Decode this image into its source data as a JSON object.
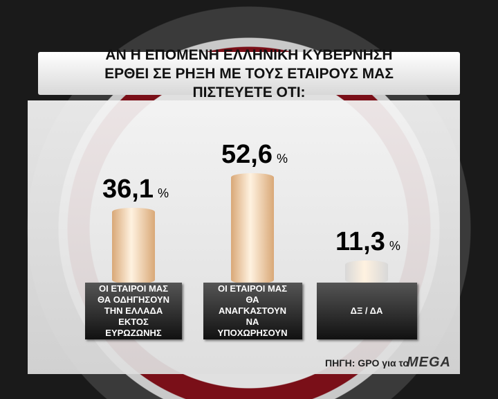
{
  "chart_data": {
    "type": "bar",
    "title": "ΑΝ Η ΕΠΟΜΕΝΗ ΕΛΛΗΝΙΚΗ ΚΥΒΕΡΝΗΣΗ ΕΡΘΕΙ ΣΕ ΡΗΞΗ ΜΕ ΤΟΥΣ ΕΤΑΙΡΟΥΣ ΜΑΣ ΠΙΣΤΕΥΕΤΕ ΟΤΙ:",
    "categories": [
      "ΟΙ ΕΤΑΙΡΟΙ ΜΑΣ ΘΑ ΟΔΗΓΗΣΟΥΝ ΤΗΝ ΕΛΛΑΔΑ ΕΚΤΟΣ ΕΥΡΩΖΩΝΗΣ",
      "ΟΙ ΕΤΑΙΡΟΙ ΜΑΣ ΘΑ ΑΝΑΓΚΑΣΤΟΥΝ ΝΑ ΥΠΟΧΩΡΗΣΟΥΝ",
      "ΔΞ / ΔΑ"
    ],
    "values": [
      36.1,
      52.6,
      11.3
    ],
    "value_labels": [
      "36,1",
      "52,6",
      "11,3"
    ],
    "value_suffix": "%",
    "colors": [
      "#d9a877",
      "#d9a877",
      "#d8d8d8"
    ],
    "source": "ΠΗΓΗ: GPO για το",
    "logo": "MEGA"
  }
}
